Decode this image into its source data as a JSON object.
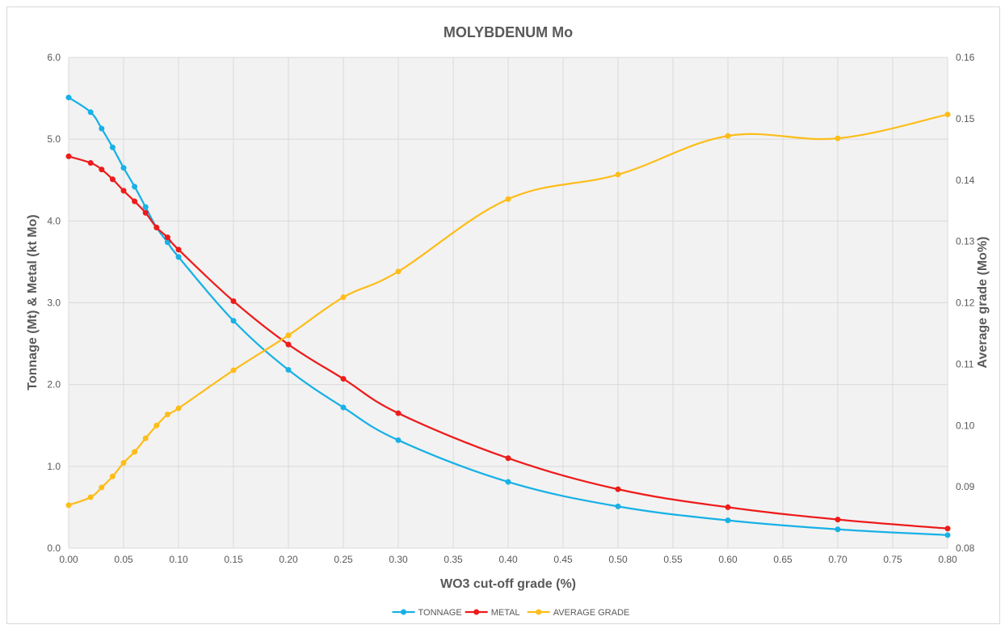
{
  "chart_data": {
    "type": "line",
    "title": "MOLYBDENUM Mo",
    "xlabel": "WO3 cut-off grade (%)",
    "ylabel_left": "Tonnage (Mt) & Metal (kt Mo)",
    "ylabel_right": "Average grade (Mo%)",
    "xlim": [
      0,
      0.8
    ],
    "ylim_left": [
      0,
      6
    ],
    "ylim_right": [
      0.08,
      0.16
    ],
    "x_ticks": [
      "0.00",
      "0.05",
      "0.10",
      "0.15",
      "0.20",
      "0.25",
      "0.30",
      "0.35",
      "0.40",
      "0.45",
      "0.50",
      "0.55",
      "0.60",
      "0.65",
      "0.70",
      "0.75",
      "0.80"
    ],
    "y_left_ticks": [
      "0.0",
      "1.0",
      "2.0",
      "3.0",
      "4.0",
      "5.0",
      "6.0"
    ],
    "y_right_ticks": [
      "0.08",
      "0.09",
      "0.10",
      "0.11",
      "0.12",
      "0.13",
      "0.14",
      "0.15",
      "0.16"
    ],
    "grid": true,
    "legend_position": "bottom",
    "x": [
      0.0,
      0.02,
      0.03,
      0.04,
      0.05,
      0.06,
      0.07,
      0.08,
      0.09,
      0.1,
      0.15,
      0.2,
      0.25,
      0.3,
      0.4,
      0.5,
      0.6,
      0.7,
      0.8
    ],
    "series": [
      {
        "name": "TONNAGE",
        "axis": "left",
        "color": "#17b1e6",
        "values": [
          5.51,
          5.33,
          5.13,
          4.9,
          4.65,
          4.42,
          4.17,
          3.92,
          3.74,
          3.56,
          2.78,
          2.18,
          1.72,
          1.32,
          0.81,
          0.51,
          0.34,
          0.23,
          0.16
        ]
      },
      {
        "name": "METAL",
        "axis": "left",
        "color": "#ee1b1b",
        "values": [
          4.79,
          4.71,
          4.63,
          4.51,
          4.37,
          4.24,
          4.1,
          3.92,
          3.8,
          3.65,
          3.02,
          2.49,
          2.07,
          1.65,
          1.1,
          0.72,
          0.5,
          0.35,
          0.24
        ]
      },
      {
        "name": "AVERAGE GRADE",
        "axis": "right",
        "color": "#fdbd1a",
        "values": [
          0.087,
          0.0883,
          0.0899,
          0.0917,
          0.0939,
          0.0957,
          0.0979,
          0.1,
          0.1018,
          0.1028,
          0.109,
          0.1147,
          0.1209,
          0.1251,
          0.1369,
          0.1409,
          0.1472,
          0.1468,
          0.1507
        ]
      }
    ]
  }
}
